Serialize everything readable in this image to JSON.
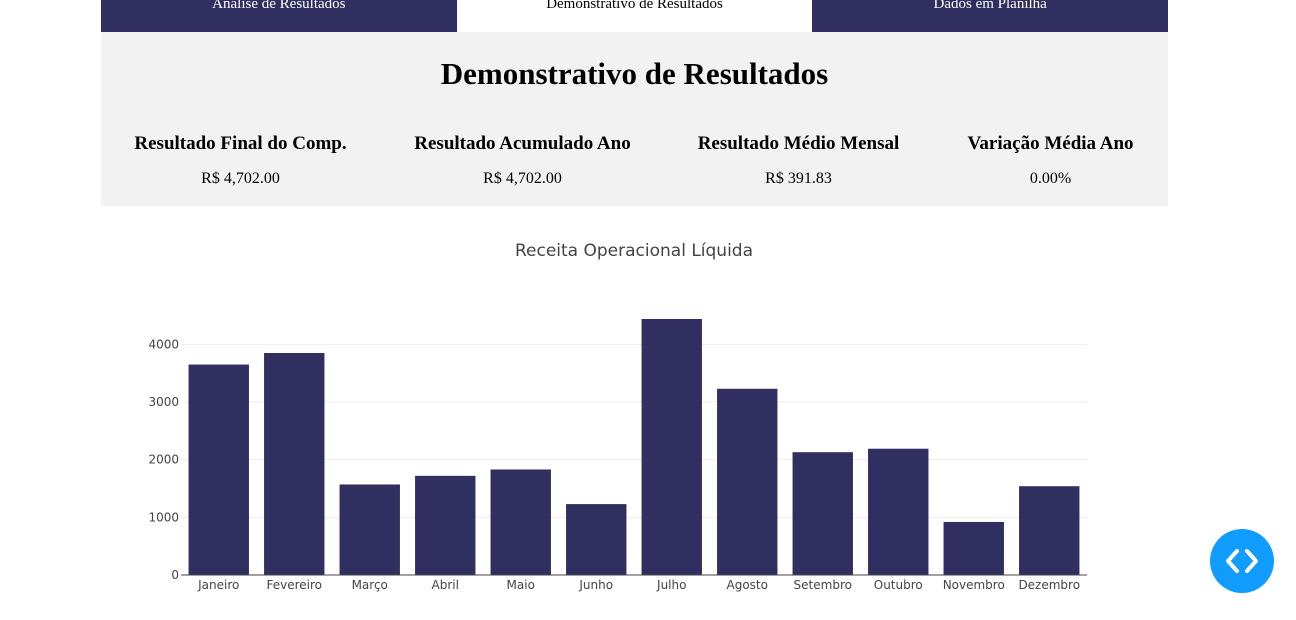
{
  "tabs": [
    {
      "label": "Análise de Resultados"
    },
    {
      "label": "Demonstrativo de Resultados"
    },
    {
      "label": "Dados em Planilha"
    }
  ],
  "panel": {
    "title": "Demonstrativo de Resultados",
    "kpis": [
      {
        "label": "Resultado Final do Comp.",
        "value": "R$ 4,702.00"
      },
      {
        "label": "Resultado Acumulado Ano",
        "value": "R$ 4,702.00"
      },
      {
        "label": "Resultado Médio Mensal",
        "value": "R$ 391.83"
      },
      {
        "label": "Variação Média Ano",
        "value": "0.00%"
      }
    ]
  },
  "colors": {
    "tab_bg": "#312f5f",
    "bar": "#312f5f",
    "panel_bg": "#f2f2f2",
    "fab": "#119dff"
  },
  "fab": {
    "icon": "code-icon"
  },
  "chart_data": {
    "type": "bar",
    "title": "Receita Operacional Líquida",
    "categories": [
      "Janeiro",
      "Fevereiro",
      "Março",
      "Abril",
      "Maio",
      "Junho",
      "Julho",
      "Agosto",
      "Setembro",
      "Outubro",
      "Novembro",
      "Dezembro"
    ],
    "values": [
      3650,
      3850,
      1570,
      1720,
      1830,
      1230,
      4440,
      3230,
      2130,
      2190,
      920,
      1540
    ],
    "yticks": [
      0,
      1000,
      2000,
      3000,
      4000
    ],
    "ylim": [
      0,
      4440
    ],
    "grid": true
  }
}
